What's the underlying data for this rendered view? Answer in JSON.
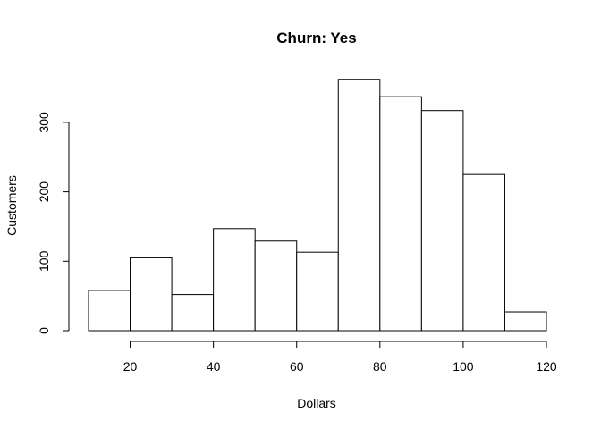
{
  "chart_data": {
    "type": "bar",
    "title": "Churn: Yes",
    "xlabel": "Dollars",
    "ylabel": "Customers",
    "bins": [
      {
        "x0": 10,
        "x1": 20,
        "value": 58
      },
      {
        "x0": 20,
        "x1": 30,
        "value": 105
      },
      {
        "x0": 30,
        "x1": 40,
        "value": 52
      },
      {
        "x0": 40,
        "x1": 50,
        "value": 147
      },
      {
        "x0": 50,
        "x1": 60,
        "value": 129
      },
      {
        "x0": 60,
        "x1": 70,
        "value": 113
      },
      {
        "x0": 70,
        "x1": 80,
        "value": 362
      },
      {
        "x0": 80,
        "x1": 90,
        "value": 337
      },
      {
        "x0": 90,
        "x1": 100,
        "value": 317
      },
      {
        "x0": 100,
        "x1": 110,
        "value": 225
      },
      {
        "x0": 110,
        "x1": 120,
        "value": 27
      }
    ],
    "xlim": [
      10,
      120
    ],
    "ylim": [
      0,
      362
    ],
    "xticks": [
      20,
      40,
      60,
      80,
      100,
      120
    ],
    "yticks": [
      0,
      100,
      200,
      300
    ],
    "grid": false
  }
}
